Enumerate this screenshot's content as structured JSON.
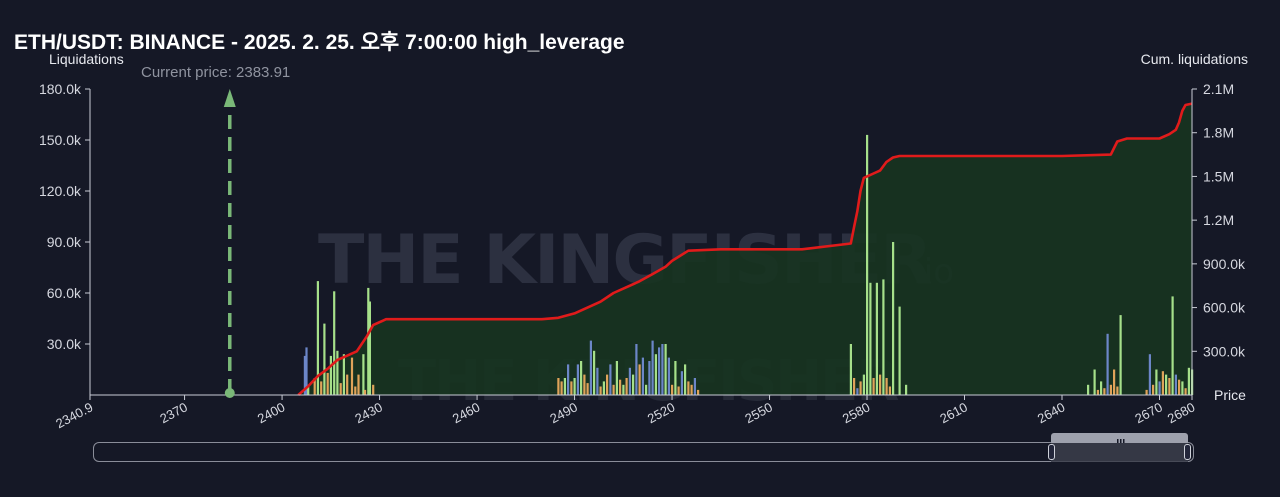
{
  "title": "ETH/USDT: BINANCE - 2025. 2. 25. 오후 7:00:00 high_leverage",
  "watermark": {
    "brand": "THE KINGFISHER",
    "suffix": ".io"
  },
  "colors": {
    "background": "#151826",
    "cum_line": "#e01b1b",
    "cum_fill": "#173420",
    "bar_green": "#a6e08a",
    "bar_blue": "#6c86c8",
    "bar_orange": "#e0a35a",
    "current_price": "#7ab878"
  },
  "chart_data": {
    "type": "bar",
    "title": "ETH/USDT: BINANCE - 2025. 2. 25. 오후 7:00:00 high_leverage",
    "xlabel": "Price",
    "ylabel": "Liquidations",
    "y2label": "Cum. liquidations",
    "xlim": [
      2340.9,
      2680
    ],
    "ylim": [
      0,
      180000
    ],
    "y2lim": [
      0,
      2100000
    ],
    "x_ticks": [
      "2340.9",
      "2370",
      "2400",
      "2430",
      "2460",
      "2490",
      "2520",
      "2550",
      "2580",
      "2610",
      "2640",
      "2670",
      "2680"
    ],
    "x_tick_values": [
      2340.9,
      2370,
      2400,
      2430,
      2460,
      2490,
      2520,
      2550,
      2580,
      2610,
      2640,
      2670,
      2680
    ],
    "y_ticks": [
      "30.0k",
      "60.0k",
      "90.0k",
      "120.0k",
      "150.0k",
      "180.0k"
    ],
    "y_tick_values": [
      30000,
      60000,
      90000,
      120000,
      150000,
      180000
    ],
    "y2_ticks": [
      "300.0k",
      "600.0k",
      "900.0k",
      "1.2M",
      "1.5M",
      "1.8M",
      "2.1M"
    ],
    "y2_tick_values": [
      300000,
      600000,
      900000,
      1200000,
      1500000,
      1800000,
      2100000
    ],
    "current_price": {
      "label": "Current price: 2383.91",
      "value": 2383.91
    },
    "grid": false,
    "series": [
      {
        "kind": "bar",
        "x": [
          2407.0,
          2407.5,
          2408.0,
          2410.0,
          2411.0,
          2412.0,
          2413.0,
          2414.0,
          2415.0,
          2416.0,
          2417.0,
          2418.0,
          2419.0,
          2420.0,
          2421.5,
          2422.5,
          2423.5,
          2425.0,
          2425.5,
          2426.5,
          2427.0,
          2428.0,
          2485.0,
          2486.0,
          2487.0,
          2488.0,
          2489.0,
          2490.0,
          2491.0,
          2492.0,
          2493.0,
          2494.0,
          2495.0,
          2496.0,
          2497.0,
          2498.0,
          2499.0,
          2500.0,
          2501.0,
          2502.0,
          2503.0,
          2504.0,
          2505.0,
          2506.0,
          2507.0,
          2508.0,
          2509.0,
          2510.0,
          2511.0,
          2512.0,
          2513.0,
          2514.0,
          2515.0,
          2516.0,
          2517.0,
          2518.0,
          2519.0,
          2520.0,
          2521.0,
          2522.0,
          2523.0,
          2524.0,
          2525.0,
          2526.0,
          2527.0,
          2528.0,
          2575.0,
          2576.0,
          2577.0,
          2578.0,
          2579.0,
          2580.0,
          2581.0,
          2582.0,
          2583.0,
          2584.0,
          2585.0,
          2586.0,
          2587.0,
          2588.0,
          2590.0,
          2592.0,
          2648.0,
          2650.0,
          2651.0,
          2652.0,
          2653.0,
          2654.0,
          2655.0,
          2656.0,
          2657.0,
          2658.0,
          2666.0,
          2667.0,
          2668.0,
          2669.0,
          2670.0,
          2671.0,
          2672.0,
          2673.0,
          2674.0,
          2675.0,
          2676.0,
          2677.0,
          2678.0,
          2679.0,
          2680.0
        ],
        "y": [
          23000,
          28000,
          5000,
          10000,
          67000,
          8000,
          42000,
          13000,
          23000,
          61000,
          26000,
          7000,
          24000,
          12000,
          22000,
          5000,
          12000,
          24000,
          3000,
          63000,
          55000,
          6000,
          10000,
          8000,
          10000,
          18000,
          8000,
          10000,
          18000,
          20000,
          12000,
          7000,
          32000,
          26000,
          16000,
          5000,
          8000,
          12000,
          18000,
          6000,
          20000,
          9000,
          6000,
          10000,
          16000,
          12000,
          30000,
          18000,
          22000,
          6000,
          20000,
          32000,
          24000,
          28000,
          30000,
          30000,
          22000,
          6000,
          20000,
          5000,
          14000,
          18000,
          8000,
          6000,
          10000,
          3000,
          30000,
          10000,
          4000,
          8000,
          12000,
          153000,
          66000,
          10000,
          66000,
          12000,
          68000,
          10000,
          5000,
          90000,
          52000,
          6000,
          6000,
          15000,
          3000,
          8000,
          4000,
          36000,
          6000,
          15000,
          5000,
          47000,
          3000,
          24000,
          6000,
          15000,
          8000,
          14000,
          12000,
          10000,
          58000,
          12000,
          9000,
          8000,
          4000,
          16000,
          15000
        ],
        "color": [
          "#6c86c8",
          "#6c86c8",
          "#a6e08a",
          "#e0a35a",
          "#a6e08a",
          "#e0a35a",
          "#a6e08a",
          "#e0a35a",
          "#a6e08a",
          "#a6e08a",
          "#a6e08a",
          "#e0a35a",
          "#a6e08a",
          "#e0a35a",
          "#e0a35a",
          "#e0a35a",
          "#e0a35a",
          "#a6e08a",
          "#e0a35a",
          "#a6e08a",
          "#a6e08a",
          "#e0a35a",
          "#e0a35a",
          "#e0a35a",
          "#a6e08a",
          "#6c86c8",
          "#e0a35a",
          "#a6e08a",
          "#6c86c8",
          "#a6e08a",
          "#e0a35a",
          "#e0a35a",
          "#6c86c8",
          "#a6e08a",
          "#6c86c8",
          "#e0a35a",
          "#a6e08a",
          "#e0a35a",
          "#6c86c8",
          "#e0a35a",
          "#a6e08a",
          "#e0a35a",
          "#a6e08a",
          "#e0a35a",
          "#6c86c8",
          "#a6e08a",
          "#6c86c8",
          "#e0a35a",
          "#6c86c8",
          "#a6e08a",
          "#6c86c8",
          "#6c86c8",
          "#a6e08a",
          "#6c86c8",
          "#6c86c8",
          "#a6e08a",
          "#6c86c8",
          "#e0a35a",
          "#a6e08a",
          "#e0a35a",
          "#6c86c8",
          "#a6e08a",
          "#e0a35a",
          "#e0a35a",
          "#6c86c8",
          "#e0a35a",
          "#a6e08a",
          "#e0a35a",
          "#6c86c8",
          "#e0a35a",
          "#a6e08a",
          "#a6e08a",
          "#a6e08a",
          "#e0a35a",
          "#a6e08a",
          "#e0a35a",
          "#a6e08a",
          "#e0a35a",
          "#e0a35a",
          "#a6e08a",
          "#a6e08a",
          "#a6e08a",
          "#a6e08a",
          "#a6e08a",
          "#e0a35a",
          "#a6e08a",
          "#e0a35a",
          "#6c86c8",
          "#e0a35a",
          "#e0a35a",
          "#e0a35a",
          "#a6e08a",
          "#e0a35a",
          "#6c86c8",
          "#e0a35a",
          "#a6e08a",
          "#6c86c8",
          "#e0a35a",
          "#a6e08a",
          "#e0a35a",
          "#a6e08a",
          "#6c86c8",
          "#e0a35a",
          "#a6e08a",
          "#e0a35a",
          "#a6e08a",
          "#a6e08a"
        ]
      },
      {
        "kind": "area-line",
        "axis": "y2",
        "x": [
          2405,
          2408,
          2411,
          2414,
          2417,
          2420,
          2423,
          2426,
          2428,
          2432,
          2440,
          2450,
          2460,
          2470,
          2480,
          2485,
          2490,
          2494,
          2498,
          2502,
          2506,
          2510,
          2514,
          2518,
          2520,
          2525,
          2535,
          2545,
          2555,
          2560,
          2575,
          2576,
          2577,
          2578,
          2579,
          2580,
          2582,
          2584,
          2586,
          2588,
          2590,
          2600,
          2620,
          2640,
          2655,
          2657,
          2660,
          2670,
          2673,
          2675,
          2676,
          2677,
          2678,
          2680
        ],
        "y": [
          0,
          60000,
          130000,
          180000,
          240000,
          270000,
          300000,
          400000,
          480000,
          520000,
          520000,
          520000,
          520000,
          520000,
          520000,
          530000,
          560000,
          600000,
          640000,
          700000,
          740000,
          780000,
          830000,
          880000,
          920000,
          990000,
          1000000,
          1000000,
          1000000,
          1000000,
          1040000,
          1150000,
          1260000,
          1400000,
          1490000,
          1500000,
          1520000,
          1540000,
          1600000,
          1630000,
          1640000,
          1640000,
          1640000,
          1640000,
          1650000,
          1740000,
          1760000,
          1760000,
          1790000,
          1820000,
          1870000,
          1950000,
          1990000,
          2000000
        ]
      }
    ]
  }
}
